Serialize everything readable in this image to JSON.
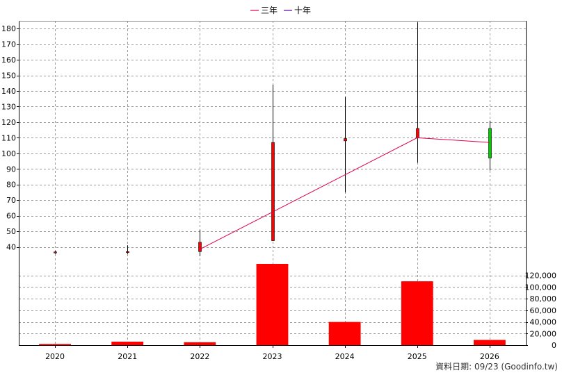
{
  "chart_data": {
    "type": "candlestick+bar",
    "categories": [
      "2020",
      "2021",
      "2022",
      "2023",
      "2024",
      "2025",
      "2026"
    ],
    "price_axis": {
      "ylim": [
        30,
        185
      ],
      "ticks": [
        40,
        50,
        60,
        70,
        80,
        90,
        100,
        110,
        120,
        130,
        140,
        150,
        160,
        170,
        180
      ]
    },
    "volume_axis": {
      "ylim": [
        0,
        140000
      ],
      "ticks": [
        0,
        20000,
        40000,
        60000,
        80000,
        100000,
        120000
      ],
      "tick_labels": [
        "0",
        "20,000",
        "40,000",
        "60,000",
        "80,000",
        "100,000",
        "120,000"
      ]
    },
    "candles": [
      {
        "x": "2020",
        "open": 36.5,
        "close": 36.8,
        "high": 37.5,
        "low": 35.5
      },
      {
        "x": "2021",
        "open": 36.5,
        "close": 37.0,
        "high": 41.0,
        "low": 35.5
      },
      {
        "x": "2022",
        "open": 37.0,
        "close": 43.0,
        "high": 51.0,
        "low": 34.0
      },
      {
        "x": "2023",
        "open": 44.0,
        "close": 107.0,
        "high": 144.0,
        "low": 44.0
      },
      {
        "x": "2024",
        "open": 108.0,
        "close": 109.5,
        "high": 136.0,
        "low": 75.0
      },
      {
        "x": "2025",
        "open": 110.0,
        "close": 116.0,
        "high": 184.0,
        "low": 94.0
      },
      {
        "x": "2026",
        "open": 116.0,
        "close": 97.0,
        "high": 121.0,
        "low": 89.0
      }
    ],
    "volume": [
      2000,
      6000,
      5000,
      140000,
      40000,
      110000,
      9000
    ],
    "series": [
      {
        "name": "三年",
        "color": "#e0004a",
        "points": [
          [
            "2022",
            38.5
          ],
          [
            "2025",
            110.0
          ],
          [
            "2026",
            107.0
          ]
        ]
      },
      {
        "name": "十年",
        "color": "#5a00a0",
        "points": []
      }
    ],
    "colors": {
      "up": "#ff0000",
      "down": "#00cc00",
      "volume": "#ff0000",
      "grid": "#999999"
    },
    "grid": true,
    "legend": "top-center"
  },
  "footer": "資料日期: 09/23 (Goodinfo.tw)"
}
